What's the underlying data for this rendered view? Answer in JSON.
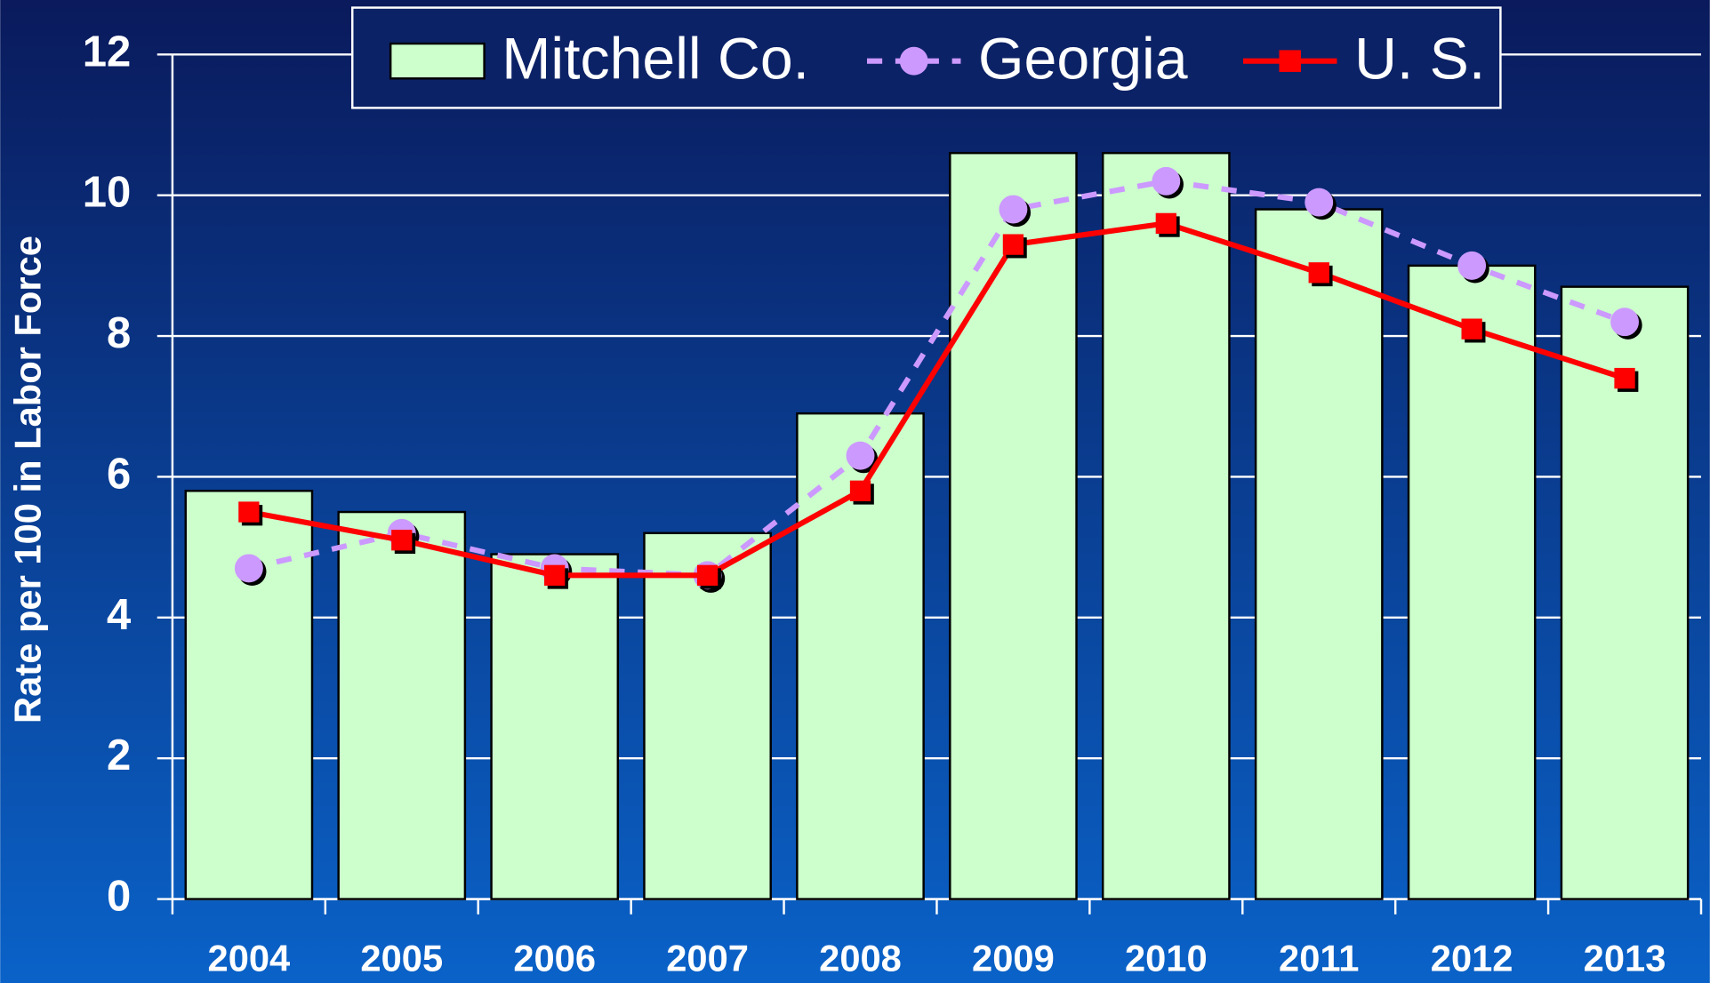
{
  "chart_data": {
    "type": "bar_line",
    "y_label": "Rate per 100 in Labor Force",
    "categories": [
      "2004",
      "2005",
      "2006",
      "2007",
      "2008",
      "2009",
      "2010",
      "2011",
      "2012",
      "2013"
    ],
    "series": [
      {
        "name": "Mitchell Co.",
        "type": "bar",
        "color": "#ccffcc",
        "values": [
          5.8,
          5.5,
          4.9,
          5.2,
          6.9,
          10.6,
          10.6,
          9.8,
          9.0,
          8.7
        ]
      },
      {
        "name": "Georgia",
        "type": "line",
        "marker": "circle",
        "dashed": true,
        "color": "#cc99ff",
        "values": [
          4.7,
          5.2,
          4.7,
          4.6,
          6.3,
          9.8,
          10.2,
          9.9,
          9.0,
          8.2
        ]
      },
      {
        "name": "U. S.",
        "type": "line",
        "marker": "square",
        "dashed": false,
        "color": "#ff0000",
        "values": [
          5.5,
          5.1,
          4.6,
          4.6,
          5.8,
          9.3,
          9.6,
          8.9,
          8.1,
          7.4
        ]
      }
    ],
    "ylim": [
      0,
      12
    ],
    "yticks": [
      0,
      2,
      4,
      6,
      8,
      10,
      12
    ],
    "grid": true,
    "legend": "top"
  }
}
